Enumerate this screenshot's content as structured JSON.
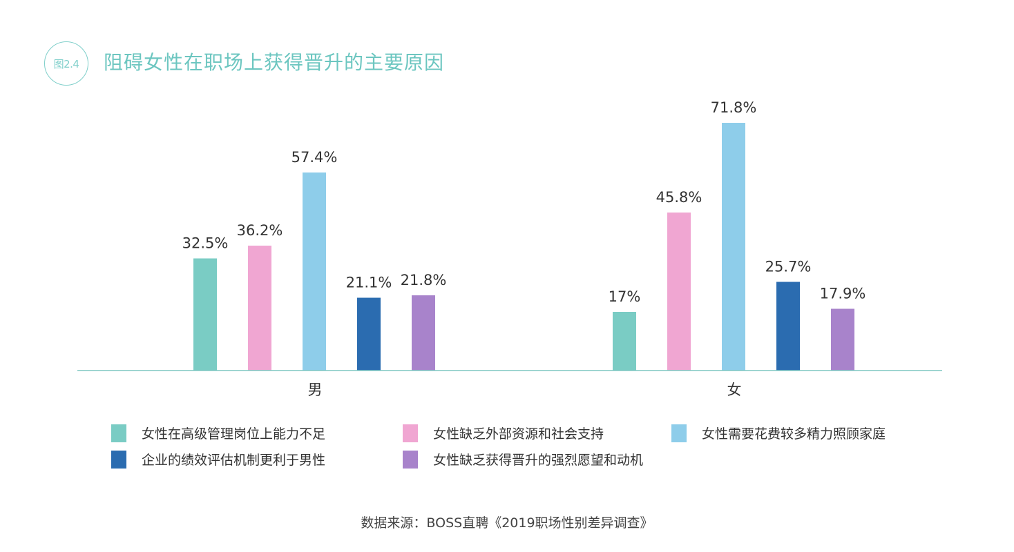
{
  "figure_label": "图2.4",
  "title": "阻碍女性在职场上获得晋升的主要原因",
  "source": "数据来源：BOSS直聘《2019职场性别差异调查》",
  "chart_data": {
    "type": "bar",
    "title": "阻碍女性在职场上获得晋升的主要原因",
    "categories": [
      "男",
      "女"
    ],
    "series": [
      {
        "name": "女性在高级管理岗位上能力不足",
        "color": "#7accc4",
        "values": [
          32.5,
          17
        ],
        "labels": [
          "32.5%",
          "17%"
        ]
      },
      {
        "name": "女性缺乏外部资源和社会支持",
        "color": "#f0a6d2",
        "values": [
          36.2,
          45.8
        ],
        "labels": [
          "36.2%",
          "45.8%"
        ]
      },
      {
        "name": "女性需要花费较多精力照顾家庭",
        "color": "#8ecdea",
        "values": [
          57.4,
          71.8
        ],
        "labels": [
          "57.4%",
          "71.8%"
        ]
      },
      {
        "name": "企业的绩效评估机制更利于男性",
        "color": "#2b6cb0",
        "values": [
          21.1,
          25.7
        ],
        "labels": [
          "21.1%",
          "25.7%"
        ]
      },
      {
        "name": "女性缺乏获得晋升的强烈愿望和动机",
        "color": "#a883cb",
        "values": [
          21.8,
          17.9
        ],
        "labels": [
          "21.8%",
          "17.9%"
        ]
      }
    ],
    "ylim": [
      0,
      100
    ],
    "grid": false,
    "legend": "bottom",
    "xlabel": "",
    "ylabel": ""
  }
}
